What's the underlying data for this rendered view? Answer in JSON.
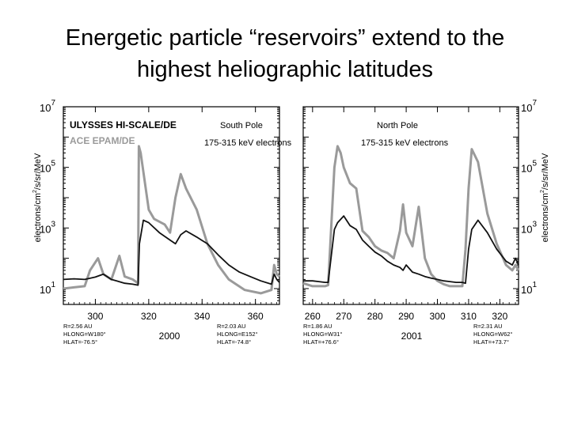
{
  "slide": {
    "title_line1": "Energetic particle “reservoirs” extend to the",
    "title_line2": "highest heliographic latitudes"
  },
  "chart_data": [
    {
      "type": "line",
      "panel": "left",
      "spacecraft_label": "ULYSSES HI-SCALE/DE",
      "ace_label": "ACE EPAM/DE",
      "pole_label": "South Pole",
      "energy_label": "175-315 keV electrons",
      "ylabel": "electrons/cm²/s/sr/MeV",
      "ylabel_html": "electrons/cm<tspan dy='-5' font-size='7'>2</tspan><tspan dy='5'>/s/sr/MeV</tspan>",
      "y_scale": "log",
      "ylim": [
        3,
        10000000
      ],
      "yticks": [
        {
          "value": 10,
          "base": "10",
          "exp": "1"
        },
        {
          "value": 1000,
          "base": "10",
          "exp": "3"
        },
        {
          "value": 100000,
          "base": "10",
          "exp": "5"
        },
        {
          "value": 10000000,
          "base": "10",
          "exp": "7"
        }
      ],
      "xlim": [
        288,
        369
      ],
      "xticks": [
        300,
        320,
        340,
        360
      ],
      "year": "2000",
      "annotations": [
        [
          "R=2.56 AU",
          "HLONG=W180°",
          "HLAT=-76.5°"
        ],
        [
          "R=2.03 AU",
          "HLONG=E152°",
          "HLAT=-74.8°"
        ]
      ],
      "series": [
        {
          "name": "ULYSSES HI-SCALE/DE",
          "color": "#111111",
          "x": [
            288,
            292,
            296,
            300,
            303,
            306,
            308,
            311,
            314,
            316,
            316.5,
            318,
            320,
            324,
            328,
            330,
            332,
            334,
            338,
            342,
            346,
            350,
            354,
            358,
            362,
            366,
            367,
            368,
            369
          ],
          "y": [
            20,
            21,
            20,
            24,
            30,
            20,
            18,
            15,
            14,
            13,
            300,
            1800,
            1500,
            700,
            400,
            300,
            600,
            800,
            500,
            300,
            130,
            60,
            35,
            25,
            18,
            14,
            30,
            20,
            16
          ]
        },
        {
          "name": "ACE EPAM/DE",
          "color": "#9a9a9a",
          "x": [
            288,
            292,
            296,
            298,
            301,
            303,
            306,
            309,
            311,
            314,
            316,
            316.3,
            317,
            320,
            322,
            326,
            328,
            330,
            332,
            334,
            338,
            342,
            346,
            350,
            356,
            362,
            366,
            367,
            368,
            369
          ],
          "y": [
            10,
            11,
            12,
            40,
            100,
            30,
            20,
            120,
            25,
            20,
            15,
            500000,
            300000,
            4000,
            2000,
            1300,
            700,
            10000,
            60000,
            20000,
            4000,
            300,
            60,
            20,
            9,
            7,
            9,
            60,
            30,
            25
          ]
        }
      ]
    },
    {
      "type": "line",
      "panel": "right",
      "pole_label": "North Pole",
      "energy_label": "175-315 keV electrons",
      "ylabel": "electrons/cm²/s/sr/MeV",
      "ylabel_html": "electrons/cm<tspan dy='-5' font-size='7'>2</tspan><tspan dy='5'>/s/sr/MeV</tspan>",
      "y_scale": "log",
      "ylim": [
        3,
        10000000
      ],
      "yticks": [
        {
          "value": 10,
          "base": "10",
          "exp": "1"
        },
        {
          "value": 1000,
          "base": "10",
          "exp": "3"
        },
        {
          "value": 100000,
          "base": "10",
          "exp": "5"
        },
        {
          "value": 10000000,
          "base": "10",
          "exp": "7"
        }
      ],
      "xlim": [
        257,
        326
      ],
      "xticks": [
        260,
        270,
        280,
        290,
        300,
        310,
        320
      ],
      "year": "2001",
      "annotations": [
        [
          "R=1.86 AU",
          "HLONG=W31°",
          "HLAT=+76.6°"
        ],
        [
          "R=2.31 AU",
          "HLONG=W62°",
          "HLAT=+73.7°"
        ]
      ],
      "series": [
        {
          "name": "ULYSSES HI-SCALE/DE",
          "color": "#111111",
          "x": [
            257,
            260,
            262,
            264,
            265,
            267,
            268,
            270,
            272,
            274,
            276,
            278,
            280,
            282,
            284,
            286,
            288,
            289,
            290,
            292,
            294,
            296,
            298,
            300,
            302,
            304,
            306,
            308,
            309,
            310,
            311,
            313,
            316,
            319,
            322,
            324,
            325,
            326
          ],
          "y": [
            18,
            18,
            17,
            16,
            16,
            900,
            1500,
            2500,
            1200,
            900,
            400,
            250,
            160,
            120,
            80,
            60,
            50,
            40,
            60,
            35,
            30,
            25,
            22,
            20,
            18,
            17,
            16,
            16,
            15,
            200,
            900,
            1800,
            700,
            200,
            80,
            60,
            100,
            60
          ]
        },
        {
          "name": "ACE EPAM/DE",
          "color": "#9a9a9a",
          "x": [
            257,
            260,
            262,
            264,
            265,
            267,
            268,
            269,
            270,
            272,
            274,
            276,
            278,
            280,
            282,
            284,
            286,
            288,
            289,
            290,
            292,
            294,
            296,
            298,
            300,
            302,
            304,
            306,
            308,
            309,
            310,
            311,
            313,
            316,
            319,
            322,
            324,
            325,
            326
          ],
          "y": [
            15,
            12,
            12,
            12,
            13,
            100000,
            500000,
            300000,
            100000,
            30000,
            20000,
            800,
            500,
            250,
            180,
            150,
            100,
            800,
            6000,
            700,
            250,
            5000,
            100,
            30,
            18,
            14,
            12,
            12,
            12,
            200,
            20000,
            400000,
            150000,
            3000,
            300,
            60,
            40,
            60,
            40
          ]
        }
      ]
    }
  ]
}
